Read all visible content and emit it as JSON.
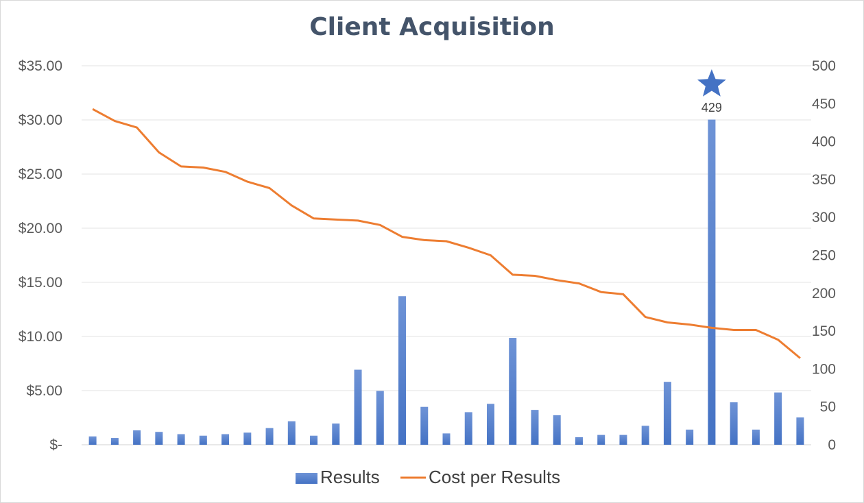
{
  "chart_data": {
    "type": "bar+line",
    "title": "Client Acquisition",
    "left_axis": {
      "min": 0,
      "max": 35,
      "step": 5,
      "tick_labels": [
        "$-",
        "$5.00",
        "$10.00",
        "$15.00",
        "$20.00",
        "$25.00",
        "$30.00",
        "$35.00"
      ]
    },
    "right_axis": {
      "min": 0,
      "max": 500,
      "step": 50,
      "tick_labels": [
        "0",
        "50",
        "100",
        "150",
        "200",
        "250",
        "300",
        "350",
        "400",
        "450",
        "500"
      ]
    },
    "grid": true,
    "legend_position": "bottom",
    "series": [
      {
        "name": "Results",
        "type": "bar",
        "axis": "right",
        "color": "#4472c4",
        "values": [
          11,
          9,
          19,
          17,
          14,
          12,
          14,
          16,
          22,
          31,
          12,
          28,
          99,
          71,
          196,
          50,
          15,
          43,
          54,
          141,
          46,
          39,
          10,
          13,
          13,
          25,
          83,
          20,
          429,
          56,
          20,
          69,
          36
        ]
      },
      {
        "name": "Cost per Results",
        "type": "line",
        "axis": "left",
        "color": "#ed7d31",
        "values": [
          31.0,
          29.9,
          29.3,
          27.0,
          25.7,
          25.6,
          25.2,
          24.3,
          23.7,
          22.1,
          20.9,
          20.8,
          20.7,
          20.3,
          19.2,
          18.9,
          18.8,
          18.2,
          17.5,
          15.7,
          15.6,
          15.2,
          14.9,
          14.1,
          13.9,
          11.8,
          11.3,
          11.1,
          10.8,
          10.6,
          10.6,
          9.7,
          8.0
        ]
      }
    ],
    "annotations": [
      {
        "series": "Results",
        "index": 28,
        "marker": "star-icon",
        "label": "429",
        "color": "#4472c4"
      }
    ]
  }
}
